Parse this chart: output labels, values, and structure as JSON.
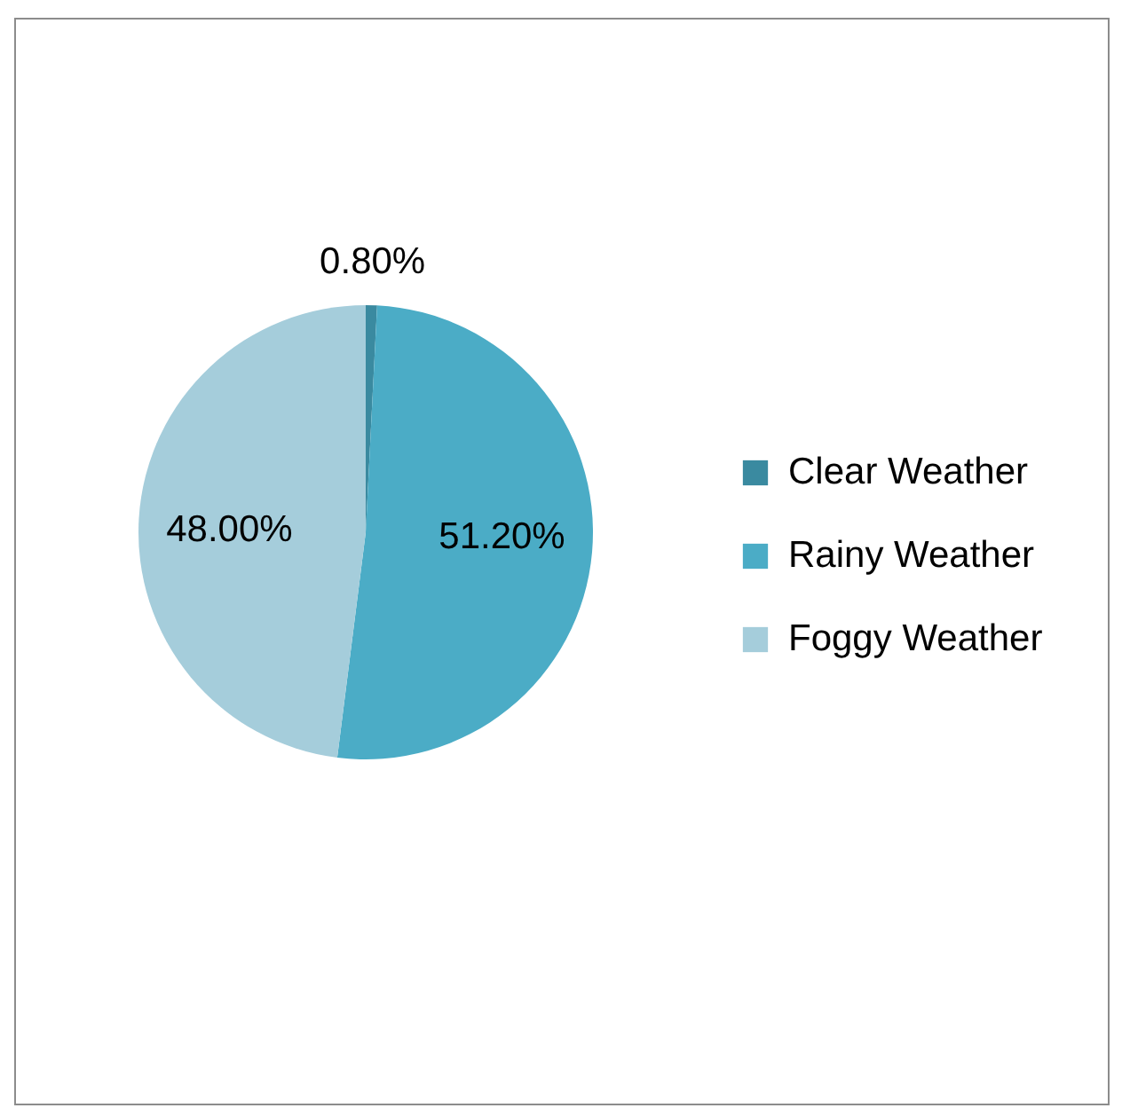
{
  "chart_data": {
    "type": "pie",
    "categories": [
      "Clear Weather",
      "Rainy Weather",
      "Foggy Weather"
    ],
    "values": [
      0.8,
      51.2,
      48.0
    ],
    "colors": [
      "#3a8aa0",
      "#4bacc6",
      "#a5cddb"
    ],
    "value_labels": [
      "0.80%",
      "51.20%",
      "48.00%"
    ],
    "legend": "right"
  }
}
